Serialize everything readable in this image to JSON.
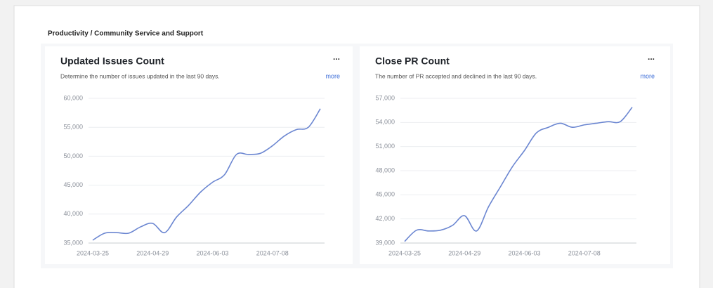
{
  "breadcrumb": "Productivity / Community Service and Support",
  "chart_data": [
    {
      "type": "line",
      "title": "Updated Issues Count",
      "subtitle": "Determine the number of issues updated in the last 90 days.",
      "menu": "...",
      "link": "more",
      "x": [
        "2024-03-25",
        "2024-04-01",
        "2024-04-08",
        "2024-04-15",
        "2024-04-22",
        "2024-04-29",
        "2024-05-06",
        "2024-05-13",
        "2024-05-20",
        "2024-05-27",
        "2024-06-03",
        "2024-06-10",
        "2024-06-17",
        "2024-06-24",
        "2024-07-01",
        "2024-07-08",
        "2024-07-15",
        "2024-07-22",
        "2024-07-29",
        "2024-08-05"
      ],
      "series": [
        {
          "color": "#6b86d1",
          "values": [
            35500,
            36700,
            36800,
            36700,
            37800,
            38400,
            36800,
            39500,
            41500,
            43800,
            45500,
            46800,
            50300,
            50300,
            50500,
            51800,
            53500,
            54600,
            55000,
            58200
          ]
        }
      ],
      "xticks": [
        "2024-03-25",
        "2024-04-29",
        "2024-06-03",
        "2024-07-08"
      ],
      "ylim": [
        35000,
        60000
      ],
      "yticks": [
        {
          "value": 35000,
          "label": "35,000"
        },
        {
          "value": 40000,
          "label": "40,000"
        },
        {
          "value": 45000,
          "label": "45,000"
        },
        {
          "value": 50000,
          "label": "50,000"
        },
        {
          "value": 55000,
          "label": "55,000"
        },
        {
          "value": 60000,
          "label": "60,000"
        }
      ],
      "grid": true
    },
    {
      "type": "line",
      "title": "Close PR Count",
      "subtitle": "The number of PR accepted and declined in the last 90 days.",
      "menu": "...",
      "link": "more",
      "x": [
        "2024-03-25",
        "2024-04-01",
        "2024-04-08",
        "2024-04-15",
        "2024-04-22",
        "2024-04-29",
        "2024-05-06",
        "2024-05-13",
        "2024-05-20",
        "2024-05-27",
        "2024-06-03",
        "2024-06-10",
        "2024-06-17",
        "2024-06-24",
        "2024-07-01",
        "2024-07-08",
        "2024-07-15",
        "2024-07-22",
        "2024-07-29",
        "2024-08-05"
      ],
      "series": [
        {
          "color": "#6b86d1",
          "values": [
            39200,
            40600,
            40500,
            40600,
            41200,
            42400,
            40500,
            43500,
            46000,
            48500,
            50500,
            52700,
            53400,
            53900,
            53400,
            53700,
            53900,
            54100,
            54100,
            55900
          ]
        }
      ],
      "xticks": [
        "2024-03-25",
        "2024-04-29",
        "2024-06-03",
        "2024-07-08"
      ],
      "ylim": [
        39000,
        57000
      ],
      "yticks": [
        {
          "value": 39000,
          "label": "39,000"
        },
        {
          "value": 42000,
          "label": "42,000"
        },
        {
          "value": 45000,
          "label": "45,000"
        },
        {
          "value": 48000,
          "label": "48,000"
        },
        {
          "value": 51000,
          "label": "51,000"
        },
        {
          "value": 54000,
          "label": "54,000"
        },
        {
          "value": 57000,
          "label": "57,000"
        }
      ],
      "grid": true
    }
  ]
}
